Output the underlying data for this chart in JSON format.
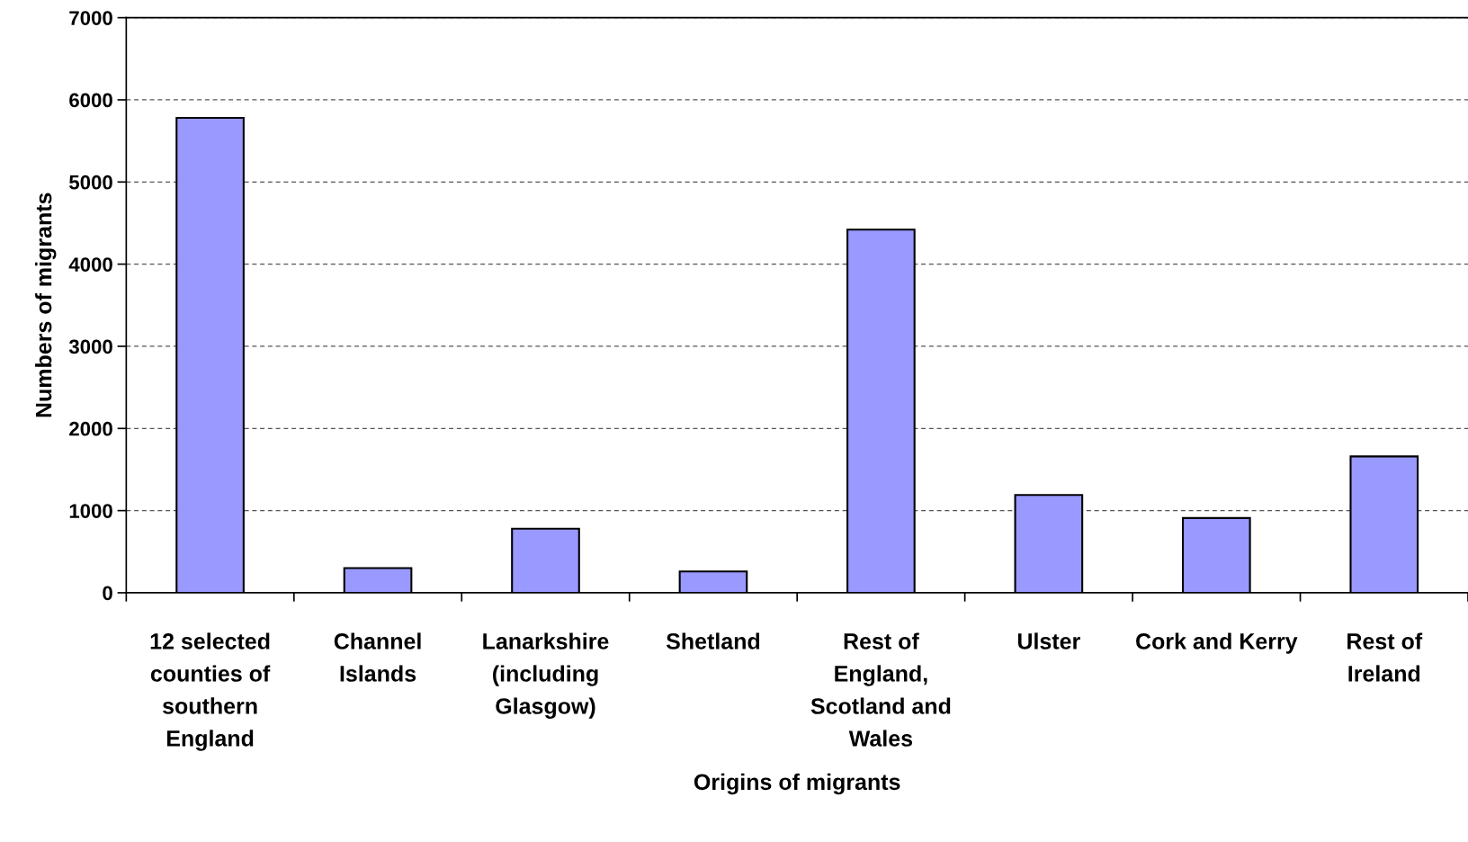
{
  "chart_data": {
    "type": "bar",
    "xlabel": "Origins of migrants",
    "ylabel": "Numbers of migrants",
    "categories": [
      "12 selected counties of southern England",
      "Channel Islands",
      "Lanarkshire (including Glasgow)",
      "Shetland",
      "Rest of England, Scotland and Wales",
      "Ulster",
      "Cork and Kerry",
      "Rest of Ireland"
    ],
    "values": [
      5780,
      300,
      780,
      260,
      4420,
      1190,
      910,
      1660
    ],
    "color": "#9999ff",
    "ylim": [
      0,
      7000
    ],
    "yticks": [
      0,
      1000,
      2000,
      3000,
      4000,
      5000,
      6000,
      7000
    ],
    "grid": "y"
  }
}
